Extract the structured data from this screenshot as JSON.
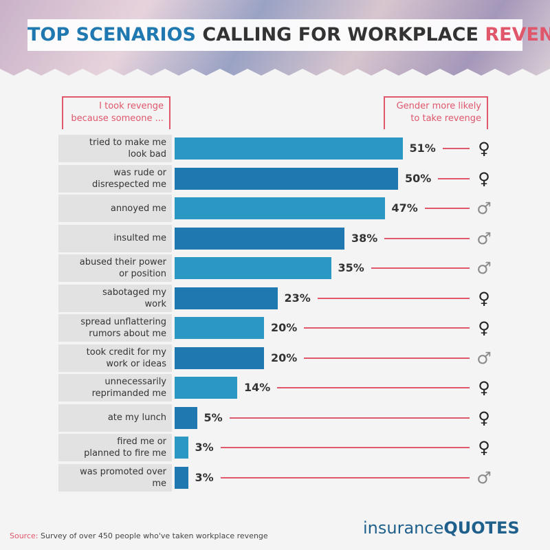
{
  "chart_data": {
    "type": "bar",
    "orientation": "horizontal",
    "title": {
      "part1": "TOP SCENARIOS",
      "part2": "CALLING FOR WORKPLACE",
      "part3": "REVENGE"
    },
    "left_header": "I took revenge because someone ...",
    "right_header": "Gender more likely to take revenge",
    "categories": [
      "tried to make me look bad",
      "was rude or disrespected me",
      "annoyed me",
      "insulted me",
      "abused their power or position",
      "sabotaged my work",
      "spread unflattering rumors about me",
      "took credit for my work or ideas",
      "unnecessarily reprimanded me",
      "ate my lunch",
      "fired me or planned to fire me",
      "was promoted over me"
    ],
    "values": [
      51,
      50,
      47,
      38,
      35,
      23,
      20,
      20,
      14,
      5,
      3,
      3
    ],
    "value_labels": [
      "51%",
      "50%",
      "47%",
      "38%",
      "35%",
      "23%",
      "20%",
      "20%",
      "14%",
      "5%",
      "3%",
      "3%"
    ],
    "colors": [
      "#2a98c2",
      "#1f78b0"
    ],
    "gender": [
      "♀",
      "♀",
      "♂",
      "♂",
      "♂",
      "♀",
      "♀",
      "♂",
      "♀",
      "♀",
      "♀",
      "♂"
    ],
    "source_label": "Source:",
    "source": "Survey of over 450 people who've taken workplace revenge",
    "logo": {
      "part1": "insurance",
      "part2": "QUOTES"
    }
  }
}
